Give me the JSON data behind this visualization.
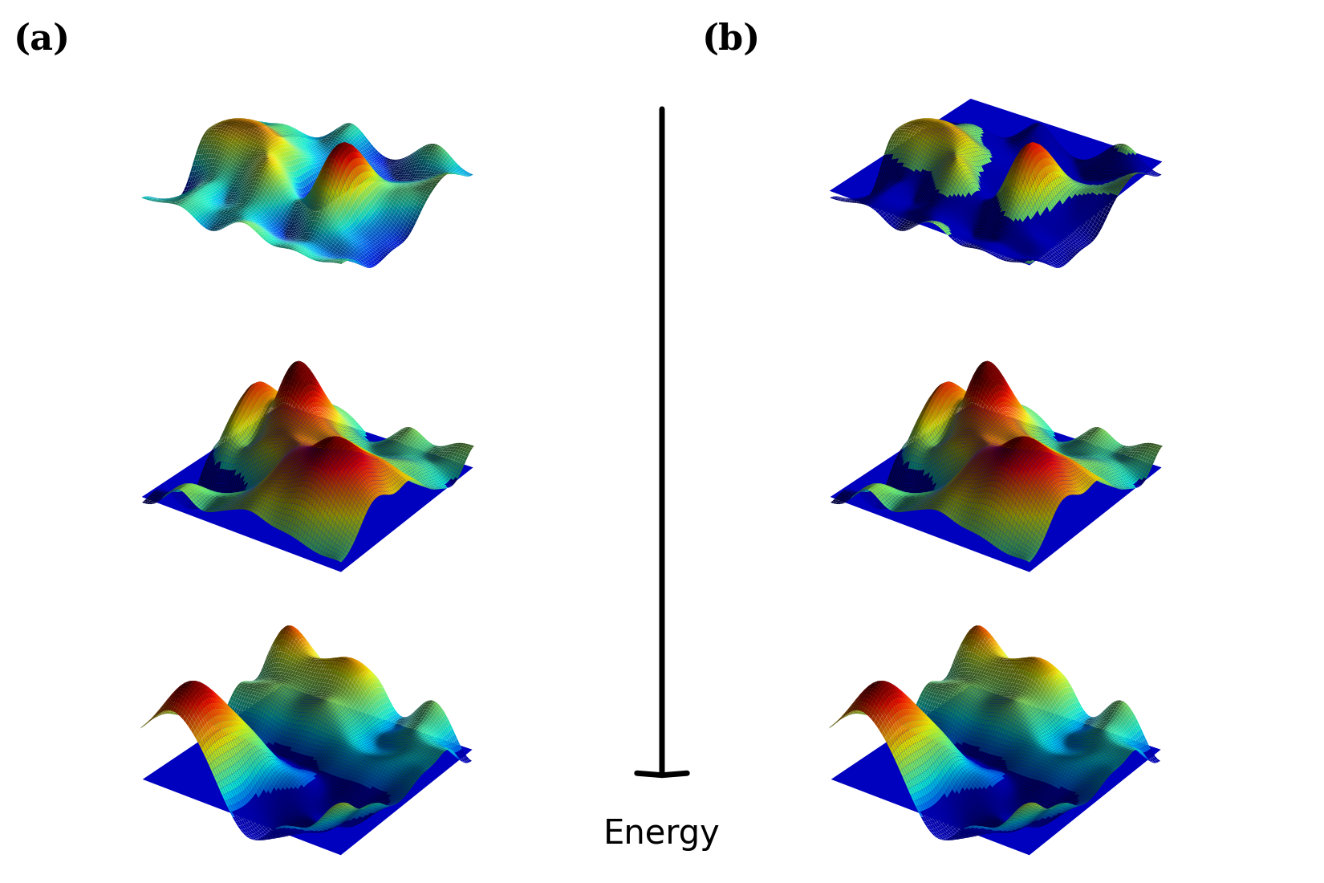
{
  "title_a": "(a)",
  "title_b": "(b)",
  "energy_label": "Energy",
  "background_color": "#ffffff",
  "blue_water": [
    0.0,
    0.0,
    0.75,
    1.0
  ],
  "fig_width": 16.5,
  "fig_height": 11.0,
  "elev": 30,
  "azim": -55,
  "label_fontsize": 32,
  "energy_fontsize": 30,
  "arrow_lw": 5,
  "arrow_mutation": 45
}
